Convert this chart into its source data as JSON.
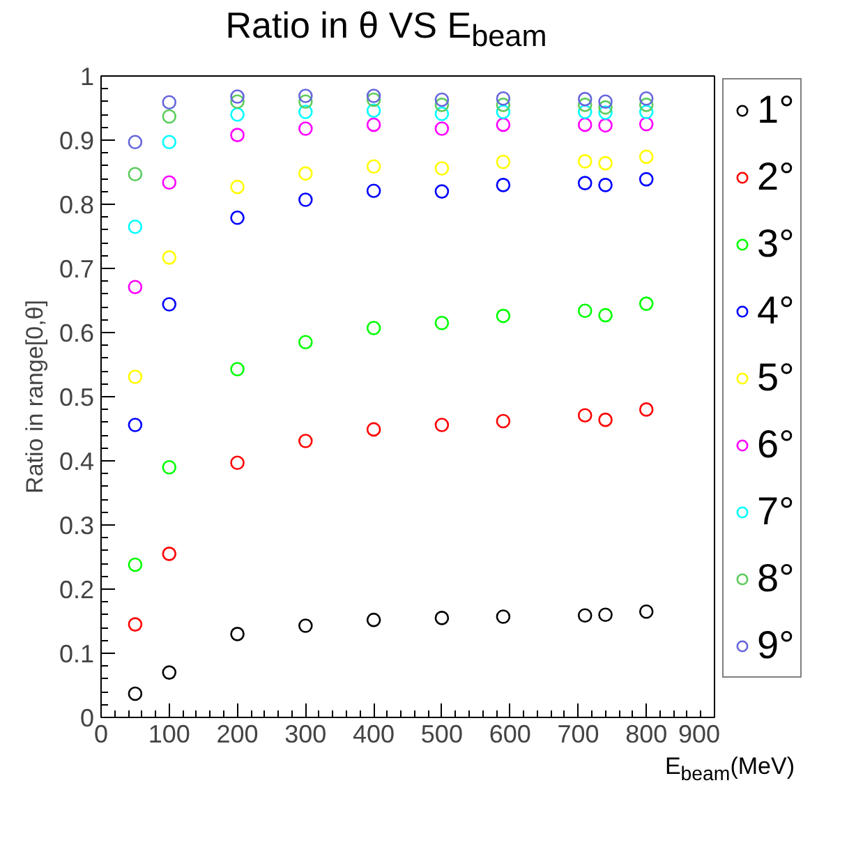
{
  "chart_data": {
    "type": "scatter",
    "title": "Ratio in θ VS E$_{beam}$",
    "xlabel": "E$_{beam}$(MeV)",
    "ylabel": "Ratio in range[0,θ]",
    "x": [
      50,
      100,
      200,
      300,
      400,
      500,
      590,
      710,
      740,
      800
    ],
    "xlim": [
      0,
      900
    ],
    "xticks": [
      0,
      100,
      200,
      300,
      400,
      500,
      600,
      700,
      800,
      900
    ],
    "ylim": [
      0,
      1
    ],
    "yticks": [
      0,
      0.1,
      0.2,
      0.3,
      0.4,
      0.5,
      0.6,
      0.7,
      0.8,
      0.9,
      1
    ],
    "grid": false,
    "legend": "right",
    "marker": "circle",
    "series": [
      {
        "name": "1°",
        "color": "#000000",
        "values": [
          0.037,
          0.07,
          0.13,
          0.143,
          0.152,
          0.155,
          0.157,
          0.159,
          0.16,
          0.165
        ]
      },
      {
        "name": "2°",
        "color": "#ff0000",
        "values": [
          0.145,
          0.255,
          0.397,
          0.431,
          0.449,
          0.456,
          0.462,
          0.471,
          0.464,
          0.48
        ]
      },
      {
        "name": "3°",
        "color": "#00ff00",
        "values": [
          0.238,
          0.39,
          0.543,
          0.585,
          0.607,
          0.615,
          0.626,
          0.634,
          0.627,
          0.645
        ]
      },
      {
        "name": "4°",
        "color": "#0000ff",
        "values": [
          0.456,
          0.644,
          0.779,
          0.807,
          0.821,
          0.82,
          0.83,
          0.833,
          0.83,
          0.839
        ]
      },
      {
        "name": "5°",
        "color": "#ffff00",
        "values": [
          0.531,
          0.717,
          0.827,
          0.848,
          0.859,
          0.856,
          0.866,
          0.867,
          0.864,
          0.874
        ]
      },
      {
        "name": "6°",
        "color": "#ff00ff",
        "values": [
          0.671,
          0.834,
          0.908,
          0.918,
          0.924,
          0.918,
          0.924,
          0.924,
          0.923,
          0.925
        ]
      },
      {
        "name": "7°",
        "color": "#00ffff",
        "values": [
          0.765,
          0.897,
          0.94,
          0.944,
          0.946,
          0.941,
          0.944,
          0.944,
          0.943,
          0.944
        ]
      },
      {
        "name": "8°",
        "color": "#5ccc5c",
        "values": [
          0.847,
          0.937,
          0.96,
          0.96,
          0.963,
          0.955,
          0.955,
          0.955,
          0.951,
          0.955
        ]
      },
      {
        "name": "9°",
        "color": "#6666dd",
        "values": [
          0.897,
          0.959,
          0.968,
          0.969,
          0.969,
          0.963,
          0.965,
          0.964,
          0.96,
          0.965
        ]
      }
    ]
  }
}
